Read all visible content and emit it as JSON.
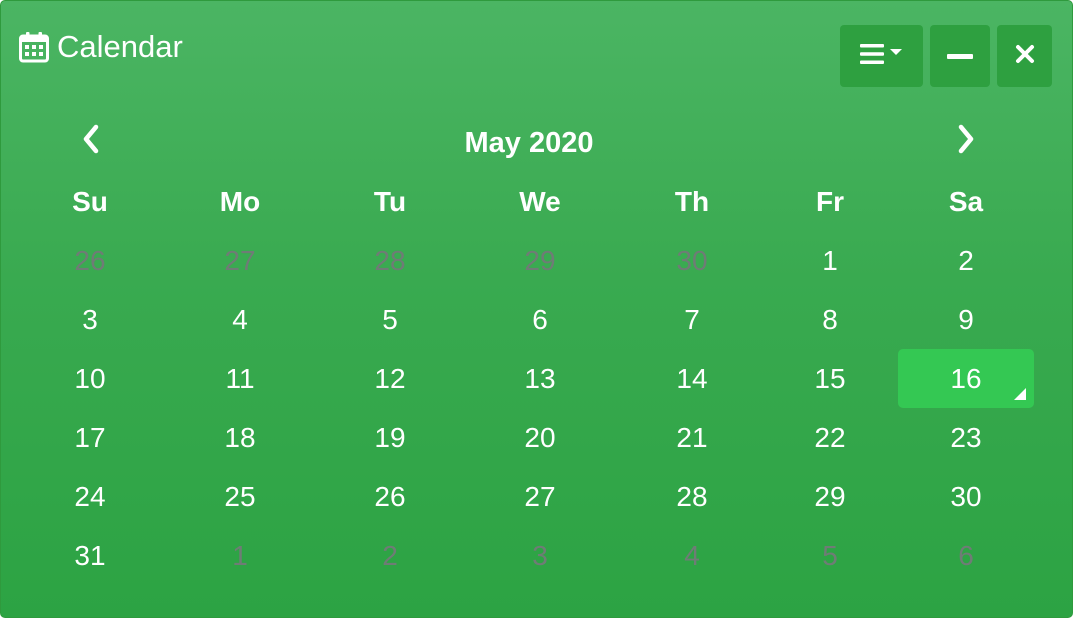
{
  "header": {
    "title": "Calendar",
    "icon": "calendar-icon",
    "tools": [
      {
        "name": "menu-dropdown-button",
        "icon": "bars-caret-icon"
      },
      {
        "name": "minimize-button",
        "icon": "minus-icon"
      },
      {
        "name": "close-button",
        "icon": "close-icon"
      }
    ]
  },
  "nav": {
    "month_label": "May 2020",
    "prev_icon": "chevron-left-icon",
    "next_icon": "chevron-right-icon"
  },
  "weekdays": [
    "Su",
    "Mo",
    "Tu",
    "We",
    "Th",
    "Fr",
    "Sa"
  ],
  "weeks": [
    [
      {
        "d": "26",
        "other": true
      },
      {
        "d": "27",
        "other": true
      },
      {
        "d": "28",
        "other": true
      },
      {
        "d": "29",
        "other": true
      },
      {
        "d": "30",
        "other": true
      },
      {
        "d": "1"
      },
      {
        "d": "2"
      }
    ],
    [
      {
        "d": "3"
      },
      {
        "d": "4"
      },
      {
        "d": "5"
      },
      {
        "d": "6"
      },
      {
        "d": "7"
      },
      {
        "d": "8"
      },
      {
        "d": "9"
      }
    ],
    [
      {
        "d": "10"
      },
      {
        "d": "11"
      },
      {
        "d": "12"
      },
      {
        "d": "13"
      },
      {
        "d": "14"
      },
      {
        "d": "15"
      },
      {
        "d": "16",
        "selected": true
      }
    ],
    [
      {
        "d": "17"
      },
      {
        "d": "18"
      },
      {
        "d": "19"
      },
      {
        "d": "20"
      },
      {
        "d": "21"
      },
      {
        "d": "22"
      },
      {
        "d": "23"
      }
    ],
    [
      {
        "d": "24"
      },
      {
        "d": "25"
      },
      {
        "d": "26"
      },
      {
        "d": "27"
      },
      {
        "d": "28"
      },
      {
        "d": "29"
      },
      {
        "d": "30"
      }
    ],
    [
      {
        "d": "31"
      },
      {
        "d": "1",
        "other": true
      },
      {
        "d": "2",
        "other": true
      },
      {
        "d": "3",
        "other": true
      },
      {
        "d": "4",
        "other": true
      },
      {
        "d": "5",
        "other": true
      },
      {
        "d": "6",
        "other": true
      }
    ]
  ],
  "colors": {
    "background_top": "#4bb563",
    "background_bottom": "#2ca343",
    "tool_button": "#2ea040",
    "selected_day": "#34c853",
    "other_month_text": "#6f7c76",
    "text": "#ffffff"
  }
}
